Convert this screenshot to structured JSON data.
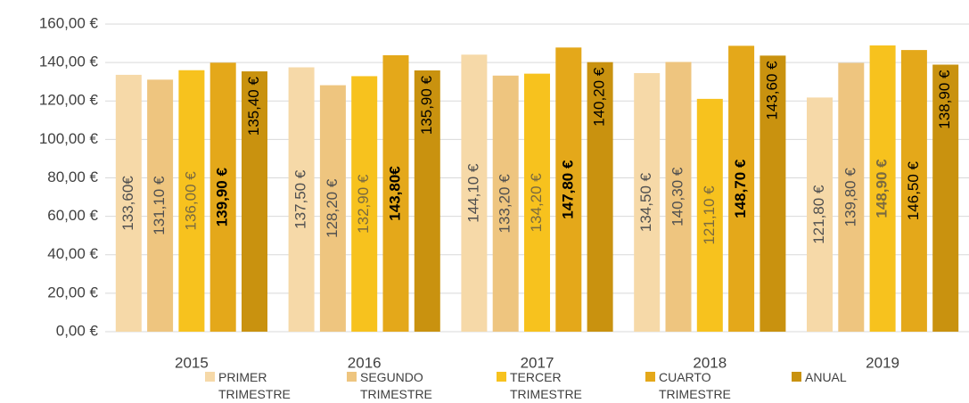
{
  "chart_data": {
    "type": "bar",
    "categories": [
      "2015",
      "2016",
      "2017",
      "2018",
      "2019"
    ],
    "series": [
      {
        "name": "PRIMER TRIMESTRE",
        "color": "#f6d9a8",
        "label_color": "#505050",
        "values": [
          133.6,
          137.5,
          144.1,
          134.5,
          121.8
        ],
        "value_labels": [
          "133,60€",
          "137,50 €",
          "144,10 €",
          "134,50 €",
          "121,80 €"
        ]
      },
      {
        "name": "SEGUNDO TRIMESTRE",
        "color": "#eec57f",
        "label_color": "#505050",
        "values": [
          131.1,
          128.2,
          133.2,
          140.3,
          139.8
        ],
        "value_labels": [
          "131,10 €",
          "128,20 €",
          "133,20 €",
          "140,30 €",
          "139,80 €"
        ]
      },
      {
        "name": "TERCER TRIMESTRE",
        "color": "#f7c21e",
        "label_color": "#7a6a40",
        "values": [
          136.0,
          132.9,
          134.2,
          121.1,
          148.9
        ],
        "value_labels": [
          "136,00 €",
          "132,90 €",
          "134,20 €",
          "121,10 €",
          "148,90 €"
        ]
      },
      {
        "name": "CUARTO TRIMESTRE",
        "color": "#e4a81a",
        "label_color": "#000000",
        "values": [
          139.9,
          143.8,
          147.8,
          148.7,
          146.5
        ],
        "value_labels": [
          "139,90 €",
          "143,80€",
          "147,80 €",
          "148,70 €",
          "146,50 €"
        ]
      },
      {
        "name": "ANUAL",
        "color": "#c9920f",
        "label_color": "#000000",
        "values": [
          135.4,
          135.9,
          140.2,
          143.6,
          138.9
        ],
        "value_labels": [
          "135,40 €",
          "135,90 €",
          "140,20 €",
          "143,60 €",
          "138,90 €"
        ]
      }
    ],
    "ylim": [
      0,
      160
    ],
    "yticks": [
      {
        "value": 0,
        "label": "0,00 €"
      },
      {
        "value": 20,
        "label": "20,00 €"
      },
      {
        "value": 40,
        "label": "40,00 €"
      },
      {
        "value": 60,
        "label": "60,00 €"
      },
      {
        "value": 80,
        "label": "80,00 €"
      },
      {
        "value": 100,
        "label": "100,00 €"
      },
      {
        "value": 120,
        "label": "120,00 €"
      },
      {
        "value": 140,
        "label": "140,00 €"
      },
      {
        "value": 160,
        "label": "160,00 €"
      }
    ],
    "grid": true,
    "legend": "bottom"
  }
}
